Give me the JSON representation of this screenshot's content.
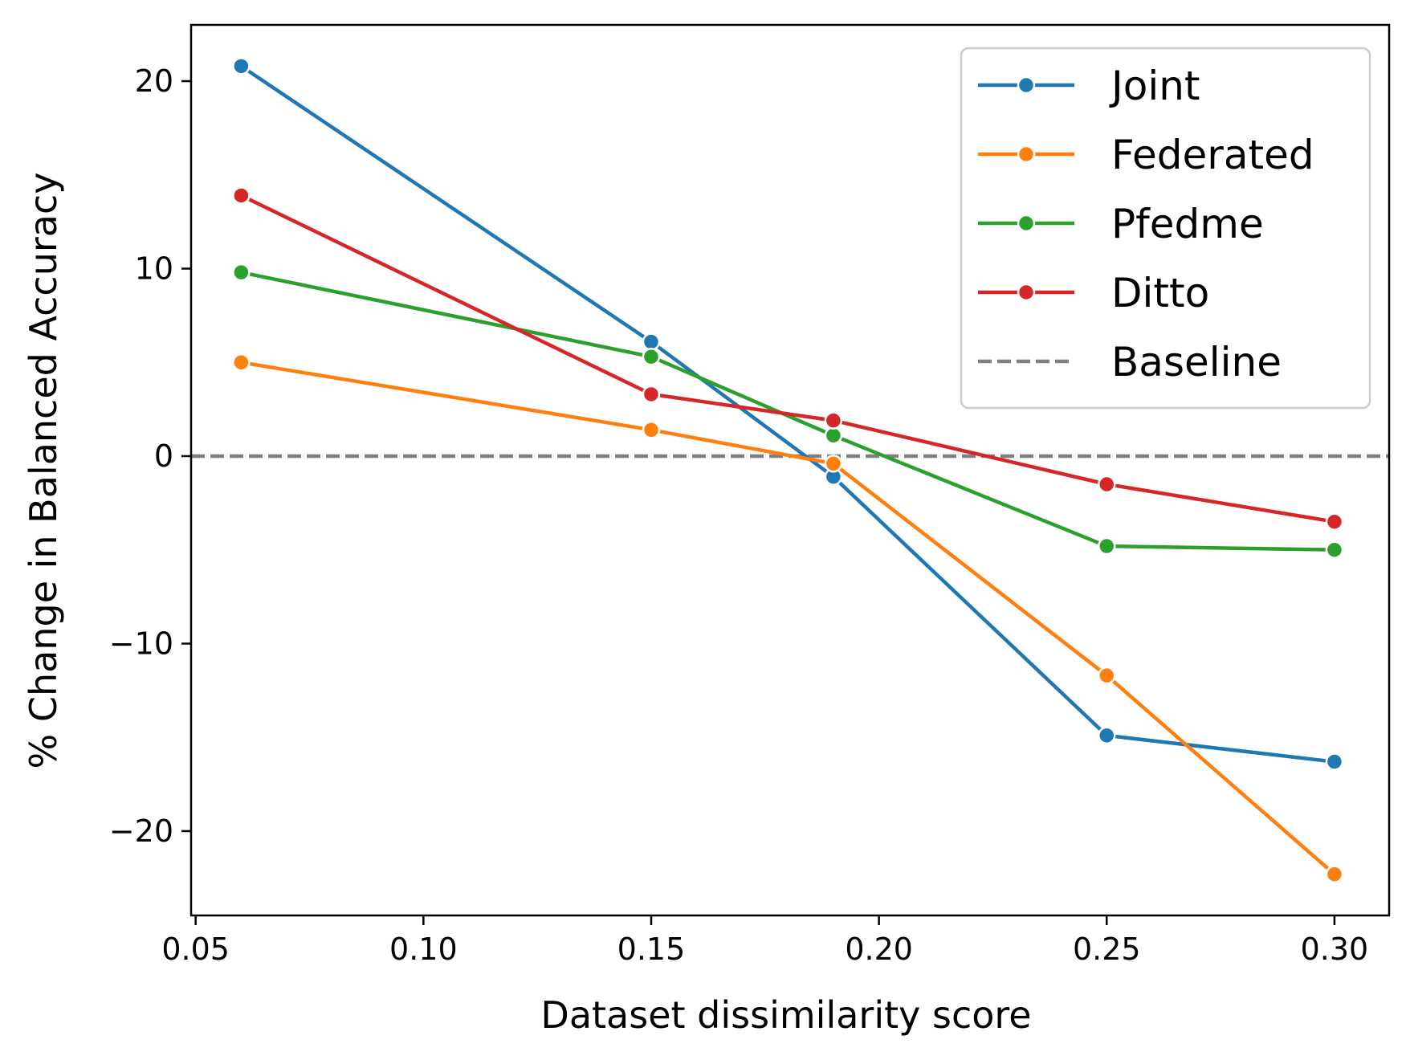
{
  "chart_data": {
    "type": "line",
    "title": "",
    "xlabel": "Dataset dissimilarity score",
    "ylabel": "% Change in Balanced Accuracy",
    "xlim": [
      0.049,
      0.312
    ],
    "ylim": [
      -24.5,
      23.0
    ],
    "grid": false,
    "legend_position": "top-right",
    "x": [
      0.06,
      0.15,
      0.19,
      0.25,
      0.3
    ],
    "xticks": [
      0.05,
      0.1,
      0.15,
      0.2,
      0.25,
      0.3
    ],
    "xtick_labels": [
      "0.05",
      "0.10",
      "0.15",
      "0.20",
      "0.25",
      "0.30"
    ],
    "yticks": [
      20,
      10,
      0,
      -10,
      -20
    ],
    "ytick_labels": [
      "20",
      "10",
      "0",
      "−10",
      "−20"
    ],
    "series": [
      {
        "name": "Joint",
        "color": "#1f77b4",
        "values": [
          20.8,
          6.1,
          -1.1,
          -14.9,
          -16.3
        ]
      },
      {
        "name": "Federated",
        "color": "#ff7f0e",
        "values": [
          5.0,
          1.4,
          -0.4,
          -11.7,
          -22.3
        ]
      },
      {
        "name": "Pfedme",
        "color": "#2ca02c",
        "values": [
          9.8,
          5.3,
          1.1,
          -4.8,
          -5.0
        ]
      },
      {
        "name": "Ditto",
        "color": "#d62728",
        "values": [
          13.9,
          3.3,
          1.9,
          -1.5,
          -3.5
        ]
      }
    ],
    "baseline": {
      "name": "Baseline",
      "value": 0,
      "color": "#808080",
      "style": "dashed"
    }
  }
}
